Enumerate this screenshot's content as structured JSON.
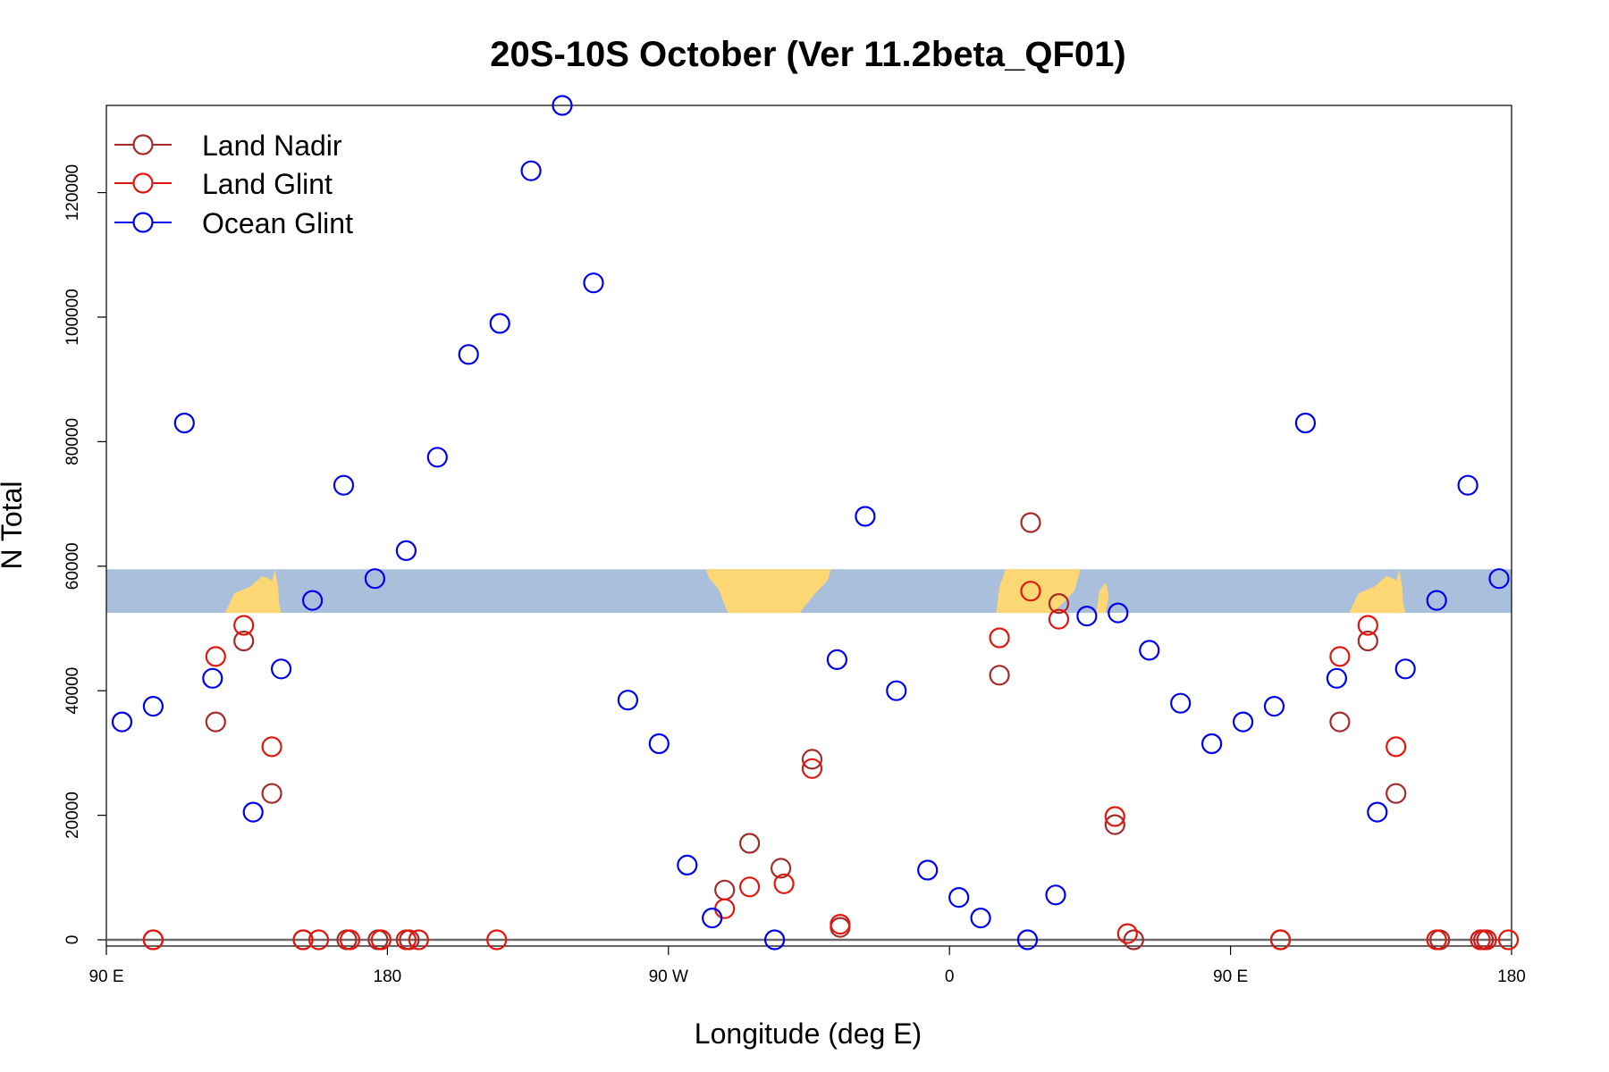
{
  "chart_data": {
    "type": "scatter",
    "title": "20S-10S October (Ver 11.2beta_QF01)",
    "xlabel": "Longitude (deg E)",
    "ylabel": "N Total",
    "xlim": [
      90,
      540
    ],
    "ylim": [
      -1000,
      134000
    ],
    "x_ticks": [
      {
        "value": 90,
        "label": "90 E"
      },
      {
        "value": 180,
        "label": "180"
      },
      {
        "value": 270,
        "label": "90 W"
      },
      {
        "value": 360,
        "label": "0"
      },
      {
        "value": 450,
        "label": "90 E"
      },
      {
        "value": 540,
        "label": "180"
      }
    ],
    "y_ticks": [
      {
        "value": 0,
        "label": "0"
      },
      {
        "value": 20000,
        "label": "20000"
      },
      {
        "value": 40000,
        "label": "40000"
      },
      {
        "value": 60000,
        "label": "60000"
      },
      {
        "value": 80000,
        "label": "80000"
      },
      {
        "value": 100000,
        "label": "100000"
      },
      {
        "value": 120000,
        "label": "120000"
      }
    ],
    "legend_position": "top-left",
    "map_band": {
      "y_range": [
        52500,
        59500
      ],
      "ocean_color": "#a9bfdc",
      "land_color": "#fcd773"
    },
    "series": [
      {
        "name": "Land Nadir",
        "color": "#a52a2a",
        "points": [
          [
            105,
            0
          ],
          [
            125,
            35000
          ],
          [
            134,
            48000
          ],
          [
            143,
            23500
          ],
          [
            153,
            0
          ],
          [
            167,
            0
          ],
          [
            177,
            0
          ],
          [
            187,
            0
          ],
          [
            288,
            8000
          ],
          [
            296,
            15500
          ],
          [
            306,
            11500
          ],
          [
            316,
            29000
          ],
          [
            325,
            2000
          ],
          [
            376,
            42500
          ],
          [
            386,
            67000
          ],
          [
            395,
            54000
          ],
          [
            413,
            18500
          ],
          [
            419,
            0
          ],
          [
            466,
            0
          ],
          [
            485,
            35000
          ],
          [
            494,
            48000
          ],
          [
            503,
            23500
          ],
          [
            517,
            0
          ],
          [
            531,
            0
          ]
        ]
      },
      {
        "name": "Land Glint",
        "color": "#e3160e",
        "points": [
          [
            105,
            0
          ],
          [
            125,
            45500
          ],
          [
            134,
            50500
          ],
          [
            143,
            31000
          ],
          [
            153,
            0
          ],
          [
            158,
            0
          ],
          [
            168,
            0
          ],
          [
            178,
            0
          ],
          [
            186,
            0
          ],
          [
            190,
            0
          ],
          [
            215,
            0
          ],
          [
            288,
            5000
          ],
          [
            296,
            8500
          ],
          [
            307,
            9000
          ],
          [
            316,
            27500
          ],
          [
            325,
            2500
          ],
          [
            376,
            48500
          ],
          [
            386,
            56000
          ],
          [
            395,
            51500
          ],
          [
            413,
            19800
          ],
          [
            417,
            1000
          ],
          [
            466,
            0
          ],
          [
            485,
            45500
          ],
          [
            494,
            50500
          ],
          [
            503,
            31000
          ],
          [
            516,
            0
          ],
          [
            530,
            0
          ],
          [
            532,
            0
          ],
          [
            539,
            0
          ]
        ]
      },
      {
        "name": "Ocean Glint",
        "color": "#0000ee",
        "points": [
          [
            95,
            35000
          ],
          [
            105,
            37500
          ],
          [
            115,
            83000
          ],
          [
            124,
            42000
          ],
          [
            137,
            20500
          ],
          [
            146,
            43500
          ],
          [
            156,
            54500
          ],
          [
            166,
            73000
          ],
          [
            176,
            58000
          ],
          [
            186,
            62500
          ],
          [
            196,
            77500
          ],
          [
            206,
            94000
          ],
          [
            216,
            99000
          ],
          [
            226,
            123500
          ],
          [
            236,
            134000
          ],
          [
            246,
            105500
          ],
          [
            257,
            38500
          ],
          [
            267,
            31500
          ],
          [
            276,
            12000
          ],
          [
            284,
            3500
          ],
          [
            304,
            0
          ],
          [
            324,
            45000
          ],
          [
            333,
            68000
          ],
          [
            343,
            40000
          ],
          [
            353,
            11200
          ],
          [
            363,
            6800
          ],
          [
            370,
            3500
          ],
          [
            385,
            0
          ],
          [
            394,
            7200
          ],
          [
            404,
            52000
          ],
          [
            414,
            52500
          ],
          [
            424,
            46500
          ],
          [
            434,
            38000
          ],
          [
            444,
            31500
          ],
          [
            454,
            35000
          ],
          [
            464,
            37500
          ],
          [
            474,
            83000
          ],
          [
            484,
            42000
          ],
          [
            497,
            20500
          ],
          [
            506,
            43500
          ],
          [
            516,
            54500
          ],
          [
            526,
            73000
          ],
          [
            536,
            58000
          ]
        ]
      }
    ]
  }
}
